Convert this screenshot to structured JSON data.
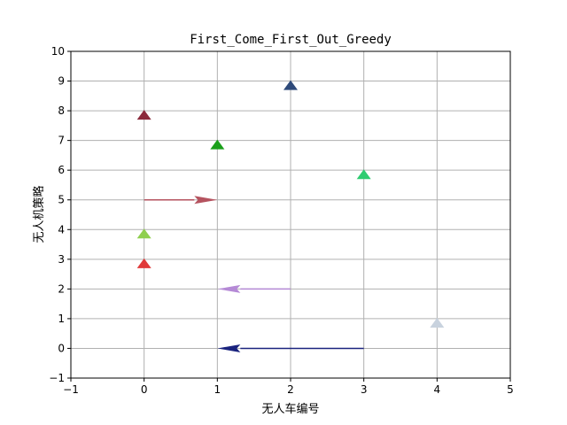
{
  "chart_data": {
    "type": "scatter",
    "title": "First_Come_First_Out_Greedy",
    "xlabel": "无人车编号",
    "ylabel": "无人机策略",
    "xlim": [
      -1,
      5
    ],
    "ylim": [
      -1,
      10
    ],
    "xticks": [
      "−1",
      "0",
      "1",
      "2",
      "3",
      "4",
      "5"
    ],
    "yticks": [
      "−1",
      "0",
      "1",
      "2",
      "3",
      "4",
      "5",
      "6",
      "7",
      "8",
      "9",
      "10"
    ],
    "grid": true,
    "markers": [
      {
        "x": 0,
        "y": 7.85,
        "color": "#8b2a3c"
      },
      {
        "x": 0,
        "y": 3.85,
        "color": "#8fcf4f"
      },
      {
        "x": 0,
        "y": 2.85,
        "color": "#e03a3a"
      },
      {
        "x": 1,
        "y": 6.85,
        "color": "#1a9f1a"
      },
      {
        "x": 2,
        "y": 8.85,
        "color": "#2e4a7a"
      },
      {
        "x": 3,
        "y": 5.85,
        "color": "#2ecc71"
      },
      {
        "x": 4,
        "y": 0.85,
        "color": "#c8d2de"
      }
    ],
    "arrows": [
      {
        "from": [
          0,
          5
        ],
        "to": [
          1,
          5
        ],
        "color": "#b5535f"
      },
      {
        "from": [
          2,
          2
        ],
        "to": [
          1,
          2
        ],
        "color": "#b58ad6"
      },
      {
        "from": [
          3,
          0
        ],
        "to": [
          1,
          0
        ],
        "color": "#1a237e"
      }
    ]
  }
}
